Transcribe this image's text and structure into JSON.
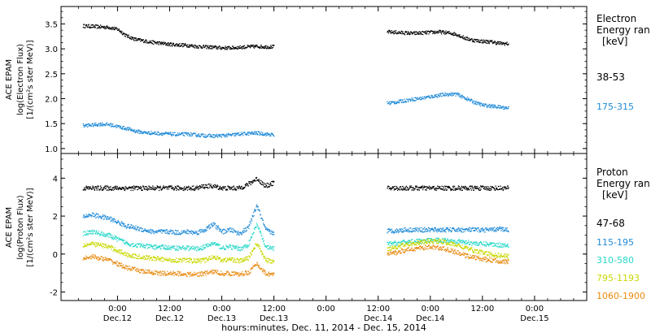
{
  "chart_data": [
    {
      "type": "scatter",
      "panel": "electron",
      "ylabel_lines": [
        "ACE EPAM",
        "log(Electron Flux)",
        "[1/(cm²s ster MeV)]"
      ],
      "ylim": [
        0.9,
        3.85
      ],
      "yticks": [
        1.0,
        1.5,
        2.0,
        2.5,
        3.0,
        3.5
      ],
      "ytick_labels": [
        "1.0",
        "1.5",
        "2.0",
        "2.5",
        "3.0",
        "3.5"
      ],
      "legend_title_lines": [
        "Electron",
        "Energy ran",
        "[keV]"
      ],
      "series": [
        {
          "name": "38-53",
          "color": "#000000",
          "x": [
            -8,
            -6,
            -4,
            -2,
            0,
            2,
            4,
            6,
            8,
            10,
            12,
            14,
            16,
            18,
            20,
            22,
            24,
            26,
            28,
            30,
            32,
            34,
            36,
            38,
            40,
            42,
            44,
            46,
            48,
            50,
            52,
            54,
            56,
            58,
            60,
            62,
            64,
            66,
            68,
            70,
            72,
            74,
            76,
            78,
            80,
            82,
            84,
            86,
            88,
            90
          ],
          "y": [
            3.47,
            3.46,
            3.45,
            3.44,
            3.4,
            3.27,
            3.2,
            3.17,
            3.14,
            3.12,
            3.1,
            3.09,
            3.08,
            3.06,
            3.05,
            3.04,
            3.03,
            3.03,
            3.04,
            3.05,
            3.06,
            3.05,
            3.05,
            null,
            null,
            null,
            null,
            null,
            null,
            null,
            null,
            null,
            null,
            null,
            null,
            3.35,
            3.34,
            3.33,
            3.32,
            3.33,
            3.34,
            3.35,
            3.33,
            3.3,
            3.22,
            3.18,
            3.16,
            3.15,
            3.12,
            3.11
          ]
        },
        {
          "name": "175-315",
          "color": "#1f8ad8",
          "x": [
            -8,
            -6,
            -4,
            -2,
            0,
            2,
            4,
            6,
            8,
            10,
            12,
            14,
            16,
            18,
            20,
            22,
            24,
            26,
            28,
            30,
            32,
            34,
            36,
            38,
            40,
            42,
            44,
            46,
            48,
            50,
            52,
            54,
            56,
            58,
            60,
            62,
            64,
            66,
            68,
            70,
            72,
            74,
            76,
            78,
            80,
            82,
            84,
            86,
            88,
            90
          ],
          "y": [
            1.47,
            1.48,
            1.5,
            1.49,
            1.45,
            1.41,
            1.36,
            1.33,
            1.32,
            1.31,
            1.3,
            1.29,
            1.3,
            1.28,
            1.27,
            1.26,
            1.27,
            1.28,
            1.3,
            1.31,
            1.32,
            1.3,
            1.28,
            null,
            null,
            null,
            null,
            null,
            null,
            null,
            null,
            null,
            null,
            null,
            null,
            1.92,
            1.94,
            1.97,
            2.0,
            2.02,
            2.05,
            2.08,
            2.1,
            2.1,
            2.02,
            1.94,
            1.88,
            1.86,
            1.84,
            1.82
          ]
        }
      ]
    },
    {
      "type": "scatter",
      "panel": "proton",
      "ylabel_lines": [
        "ACE EPAM",
        "log(Proton Flux)",
        "[1/(cm²s ster MeV)]"
      ],
      "ylim": [
        -2.45,
        5.3
      ],
      "yticks": [
        -2,
        0,
        2,
        4
      ],
      "ytick_labels": [
        "-2",
        "0",
        "2",
        "4"
      ],
      "legend_title_lines": [
        "Proton",
        "Energy ran",
        "[keV]"
      ],
      "series": [
        {
          "name": "47-68",
          "color": "#000000",
          "x": [
            -8,
            -6,
            -4,
            -2,
            0,
            2,
            4,
            6,
            8,
            10,
            12,
            14,
            16,
            18,
            20,
            22,
            24,
            26,
            28,
            30,
            32,
            34,
            36,
            38,
            40,
            42,
            44,
            46,
            48,
            50,
            52,
            54,
            56,
            58,
            60,
            62,
            64,
            66,
            68,
            70,
            72,
            74,
            76,
            78,
            80,
            82,
            84,
            86,
            88,
            90
          ],
          "y": [
            3.5,
            3.5,
            3.5,
            3.5,
            3.5,
            3.5,
            3.5,
            3.5,
            3.5,
            3.5,
            3.5,
            3.5,
            3.5,
            3.5,
            3.6,
            3.6,
            3.5,
            3.5,
            3.5,
            3.7,
            4.0,
            3.6,
            3.8,
            null,
            null,
            null,
            null,
            null,
            null,
            null,
            null,
            null,
            null,
            null,
            null,
            3.5,
            3.5,
            3.5,
            3.5,
            3.5,
            3.5,
            3.5,
            3.5,
            3.5,
            3.5,
            3.5,
            3.5,
            3.5,
            3.5,
            3.5
          ]
        },
        {
          "name": "115-195",
          "color": "#1f8ad8",
          "x": [
            -8,
            -6,
            -4,
            -2,
            0,
            2,
            4,
            6,
            8,
            10,
            12,
            14,
            16,
            18,
            20,
            22,
            24,
            26,
            28,
            30,
            32,
            34,
            36,
            38,
            40,
            42,
            44,
            46,
            48,
            50,
            52,
            54,
            56,
            58,
            60,
            62,
            64,
            66,
            68,
            70,
            72,
            74,
            76,
            78,
            80,
            82,
            84,
            86,
            88,
            90
          ],
          "y": [
            2.0,
            2.1,
            2.0,
            1.9,
            1.7,
            1.5,
            1.4,
            1.3,
            1.2,
            1.2,
            1.2,
            1.15,
            1.2,
            1.15,
            1.3,
            1.6,
            1.2,
            1.3,
            1.1,
            1.4,
            2.6,
            1.3,
            1.1,
            null,
            null,
            null,
            null,
            null,
            null,
            null,
            null,
            null,
            null,
            null,
            null,
            1.25,
            1.25,
            1.3,
            1.3,
            1.3,
            1.3,
            1.3,
            1.3,
            1.3,
            1.3,
            1.3,
            1.3,
            1.3,
            1.35,
            1.3
          ]
        },
        {
          "name": "310-580",
          "color": "#27d8c8",
          "x": [
            -8,
            -6,
            -4,
            -2,
            0,
            2,
            4,
            6,
            8,
            10,
            12,
            14,
            16,
            18,
            20,
            22,
            24,
            26,
            28,
            30,
            32,
            34,
            36,
            38,
            40,
            42,
            44,
            46,
            48,
            50,
            52,
            54,
            56,
            58,
            60,
            62,
            64,
            66,
            68,
            70,
            72,
            74,
            76,
            78,
            80,
            82,
            84,
            86,
            88,
            90
          ],
          "y": [
            1.1,
            1.2,
            1.1,
            1.0,
            0.8,
            0.6,
            0.5,
            0.45,
            0.4,
            0.4,
            0.35,
            0.35,
            0.35,
            0.3,
            0.4,
            0.6,
            0.35,
            0.4,
            0.3,
            0.5,
            1.6,
            0.4,
            0.3,
            null,
            null,
            null,
            null,
            null,
            null,
            null,
            null,
            null,
            null,
            null,
            null,
            0.55,
            0.6,
            0.65,
            0.7,
            0.7,
            0.75,
            0.75,
            0.75,
            0.7,
            0.65,
            0.6,
            0.55,
            0.55,
            0.5,
            0.5
          ]
        },
        {
          "name": "795-1193",
          "color": "#c8d800",
          "x": [
            -8,
            -6,
            -4,
            -2,
            0,
            2,
            4,
            6,
            8,
            10,
            12,
            14,
            16,
            18,
            20,
            22,
            24,
            26,
            28,
            30,
            32,
            34,
            36,
            38,
            40,
            42,
            44,
            46,
            48,
            50,
            52,
            54,
            56,
            58,
            60,
            62,
            64,
            66,
            68,
            70,
            72,
            74,
            76,
            78,
            80,
            82,
            84,
            86,
            88,
            90
          ],
          "y": [
            0.5,
            0.55,
            0.5,
            0.4,
            0.2,
            0.0,
            -0.1,
            -0.15,
            -0.2,
            -0.25,
            -0.3,
            -0.3,
            -0.3,
            -0.35,
            -0.3,
            -0.1,
            -0.3,
            -0.25,
            -0.35,
            -0.2,
            0.6,
            -0.3,
            -0.4,
            null,
            null,
            null,
            null,
            null,
            null,
            null,
            null,
            null,
            null,
            null,
            null,
            0.3,
            0.4,
            0.5,
            0.6,
            0.65,
            0.7,
            0.7,
            0.6,
            0.5,
            0.35,
            0.2,
            0.1,
            0.0,
            -0.05,
            -0.1
          ]
        },
        {
          "name": "1060-1900",
          "color": "#e88a10",
          "x": [
            -8,
            -6,
            -4,
            -2,
            0,
            2,
            4,
            6,
            8,
            10,
            12,
            14,
            16,
            18,
            20,
            22,
            24,
            26,
            28,
            30,
            32,
            34,
            36,
            38,
            40,
            42,
            44,
            46,
            48,
            50,
            52,
            54,
            56,
            58,
            60,
            62,
            64,
            66,
            68,
            70,
            72,
            74,
            76,
            78,
            80,
            82,
            84,
            86,
            88,
            90
          ],
          "y": [
            -0.2,
            -0.1,
            -0.2,
            -0.3,
            -0.5,
            -0.7,
            -0.8,
            -0.9,
            -0.95,
            -1.0,
            -1.0,
            -1.0,
            -1.05,
            -1.05,
            -1.0,
            -0.9,
            -1.0,
            -1.0,
            -1.05,
            -0.95,
            -0.5,
            -1.0,
            -1.05,
            null,
            null,
            null,
            null,
            null,
            null,
            null,
            null,
            null,
            null,
            null,
            null,
            0.0,
            0.1,
            0.2,
            0.3,
            0.35,
            0.4,
            0.35,
            0.25,
            0.1,
            -0.05,
            -0.15,
            -0.25,
            -0.3,
            -0.35,
            -0.4
          ]
        }
      ]
    }
  ],
  "x_axis": {
    "xlim": [
      -13,
      108
    ],
    "ticks": [
      0,
      12,
      24,
      36,
      48,
      60,
      72,
      84,
      96
    ],
    "tick_labels_time": [
      "0:00",
      "12:00",
      "0:00",
      "12:00",
      "0:00",
      "12:00",
      "0:00",
      "12:00",
      "0:00"
    ],
    "tick_labels_date": [
      "Dec.12",
      "Dec.12",
      "Dec.13",
      "Dec.13",
      "Dec.14",
      "Dec.14",
      "Dec.15"
    ],
    "date_label_ticks": [
      0,
      12,
      24,
      36,
      60,
      72,
      96
    ],
    "xlabel": "hours:minutes, Dec. 11, 2014 - Dec. 15, 2014"
  }
}
